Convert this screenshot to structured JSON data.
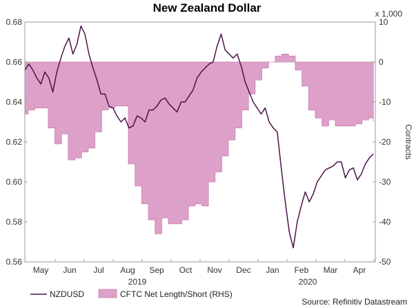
{
  "chart_data": {
    "type": "line",
    "title": "New Zealand Dollar",
    "right_axis_multiplier": "x 1,000",
    "right_axis_label": "Contracts",
    "source": "Source: Refinitiv Datastream",
    "x_month_labels": [
      "May",
      "Jun",
      "Jul",
      "Aug",
      "Sep",
      "Oct",
      "Nov",
      "Dec",
      "Jan",
      "Feb",
      "Mar",
      "Apr"
    ],
    "x_year_labels": [
      "2019",
      "2020"
    ],
    "left_axis": {
      "ylim": [
        0.56,
        0.68
      ],
      "ticks": [
        "0.68",
        "0.66",
        "0.64",
        "0.62",
        "0.60",
        "0.58",
        "0.56"
      ]
    },
    "right_axis": {
      "ylim": [
        -50,
        10
      ],
      "ticks": [
        "10",
        "0",
        "-10",
        "-20",
        "-30",
        "-40",
        "-50"
      ]
    },
    "grid": false,
    "legend_position": "bottom",
    "colors": {
      "line": "#4b1248",
      "area_fill": "#dda0c8",
      "area_stroke": "#c77fb0"
    },
    "series": [
      {
        "name": "NZDUSD",
        "kind": "line",
        "axis": "left",
        "x": [
          0,
          0.6,
          1.2,
          1.8,
          2.4,
          3.0,
          3.6,
          4.2,
          4.8,
          5.4,
          6.0,
          6.6,
          7.2,
          7.8,
          8.4,
          9.0,
          9.6,
          10.2,
          10.8,
          11.4,
          12.0,
          12.6,
          13.2,
          13.8,
          14.4,
          15.0,
          15.6,
          16.2,
          16.8,
          17.4,
          18.0,
          18.6,
          19.2,
          19.8,
          20.4,
          21.0,
          21.6,
          22.2,
          22.8,
          23.4,
          24.0,
          24.6,
          25.2,
          25.8,
          26.4,
          27.0,
          27.6,
          28.2,
          28.8,
          29.4,
          30.0,
          30.6,
          31.2,
          31.8,
          32.4,
          33.0,
          33.6,
          34.2,
          34.8,
          35.4,
          36.0,
          36.6,
          37.2,
          37.8,
          38.4,
          39.0,
          39.6,
          40.2,
          40.8,
          41.4,
          42.0,
          42.6,
          43.2,
          43.8,
          44.4,
          45.0,
          45.6,
          46.2,
          46.8,
          47.4,
          48.0,
          48.6,
          49.2,
          49.8,
          50.4,
          51.0,
          51.6,
          52.2
        ],
        "values": [
          0.656,
          0.659,
          0.656,
          0.652,
          0.649,
          0.655,
          0.652,
          0.645,
          0.655,
          0.662,
          0.668,
          0.672,
          0.664,
          0.669,
          0.678,
          0.674,
          0.664,
          0.657,
          0.651,
          0.644,
          0.644,
          0.638,
          0.637,
          0.633,
          0.63,
          0.632,
          0.627,
          0.628,
          0.633,
          0.632,
          0.63,
          0.636,
          0.636,
          0.638,
          0.641,
          0.642,
          0.639,
          0.637,
          0.635,
          0.64,
          0.64,
          0.643,
          0.646,
          0.652,
          0.655,
          0.657,
          0.659,
          0.66,
          0.668,
          0.674,
          0.666,
          0.664,
          0.662,
          0.664,
          0.658,
          0.65,
          0.645,
          0.64,
          0.637,
          0.634,
          0.637,
          0.63,
          0.627,
          0.625,
          0.607,
          0.59,
          0.575,
          0.567,
          0.58,
          0.588,
          0.595,
          0.59,
          0.594,
          0.6,
          0.603,
          0.606,
          0.607,
          0.608,
          0.61,
          0.61,
          0.602,
          0.606,
          0.607,
          0.601,
          0.604,
          0.609,
          0.612,
          0.614
        ]
      },
      {
        "name": "CFTC Net Length/Short (RHS)",
        "kind": "area",
        "axis": "right",
        "x": [
          0,
          0.5,
          1.5,
          2.5,
          3.5,
          4.5,
          5.5,
          6.5,
          7.5,
          8.5,
          9.5,
          10.5,
          11.5,
          12.5,
          13.5,
          14.5,
          15.5,
          16.5,
          17.5,
          18.5,
          19.5,
          20.5,
          21.5,
          22.5,
          23.5,
          24.5,
          25.5,
          26.5,
          27.5,
          28.5,
          29.5,
          30.5,
          31.5,
          32.5,
          33.5,
          34.5,
          35.5,
          36.5,
          37.5,
          38.5,
          39.5,
          40.5,
          41.5,
          42.5,
          43.5,
          44.5,
          45.5,
          46.5,
          47.5,
          48.5,
          49.5,
          50.5,
          51.5,
          52.2
        ],
        "values": [
          -13.0,
          -12.0,
          -11.5,
          -11.5,
          -16.5,
          -20.5,
          -18.0,
          -24.5,
          -24.0,
          -22.5,
          -21.5,
          -17.5,
          -12.0,
          -11.5,
          -11.0,
          -11.0,
          -25.5,
          -31.0,
          -35.5,
          -39.5,
          -43.0,
          -39.0,
          -40.5,
          -40.5,
          -39.5,
          -36.0,
          -35.5,
          -36.0,
          -30.0,
          -27.5,
          -23.5,
          -19.5,
          -16.5,
          -12.0,
          -8.0,
          -4.5,
          -1.5,
          0.0,
          1.5,
          2.0,
          1.5,
          -2.0,
          -6.0,
          -12.0,
          -14.0,
          -16.0,
          -14.5,
          -16.0,
          -16.0,
          -16.0,
          -15.5,
          -14.5,
          -14.0,
          -15.0
        ]
      }
    ]
  }
}
